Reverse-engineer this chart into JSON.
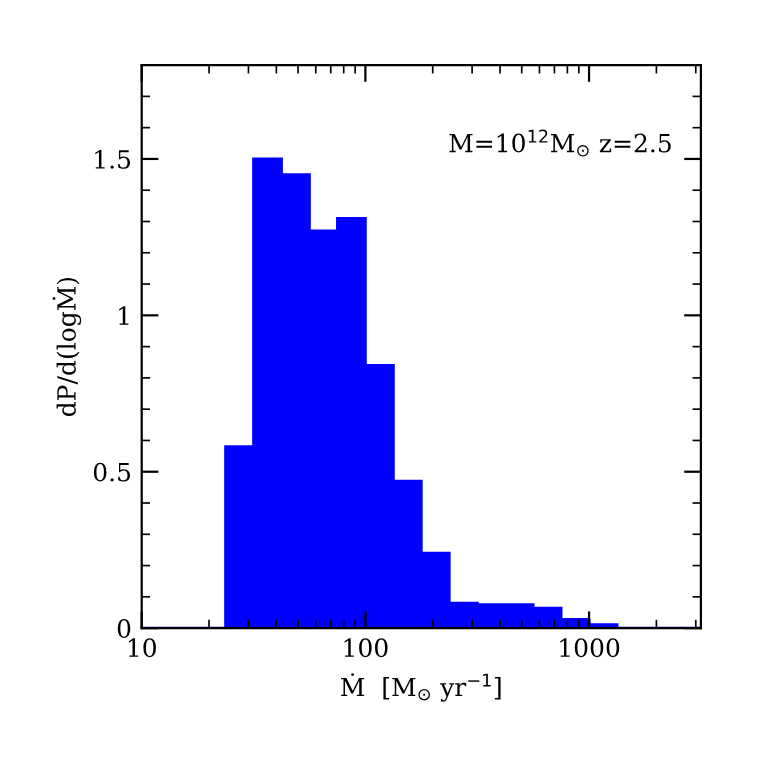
{
  "chart_data": {
    "type": "histogram",
    "xlabel": "Ṁ  [M$_{⊙}$ yr$^{−1}$]",
    "ylabel": "dP/d(logṀ)",
    "annotations": [
      "M=10$^{12}$M$_{⊙}$ z=2.5"
    ],
    "bins": [
      10,
      13.34,
      17.78,
      23.71,
      31.62,
      42.17,
      56.23,
      74.99,
      100,
      133.4,
      177.8,
      237.1,
      316.2,
      421.7,
      562.3,
      749.9,
      1000,
      1334,
      1778,
      2371,
      3162
    ],
    "values": [
      0,
      0,
      0,
      0.58,
      1.5,
      1.45,
      1.27,
      1.31,
      0.84,
      0.47,
      0.24,
      0.08,
      0.075,
      0.075,
      0.064,
      0.028,
      0.011,
      0,
      0,
      0
    ],
    "color": "#0000ff",
    "log": "x",
    "xlim": [
      10,
      3162
    ],
    "xticks": [
      10,
      100,
      1000
    ],
    "ylim": [
      0,
      1.8
    ],
    "yticks": [
      0,
      0.5,
      1,
      1.5
    ],
    "grid": false
  }
}
